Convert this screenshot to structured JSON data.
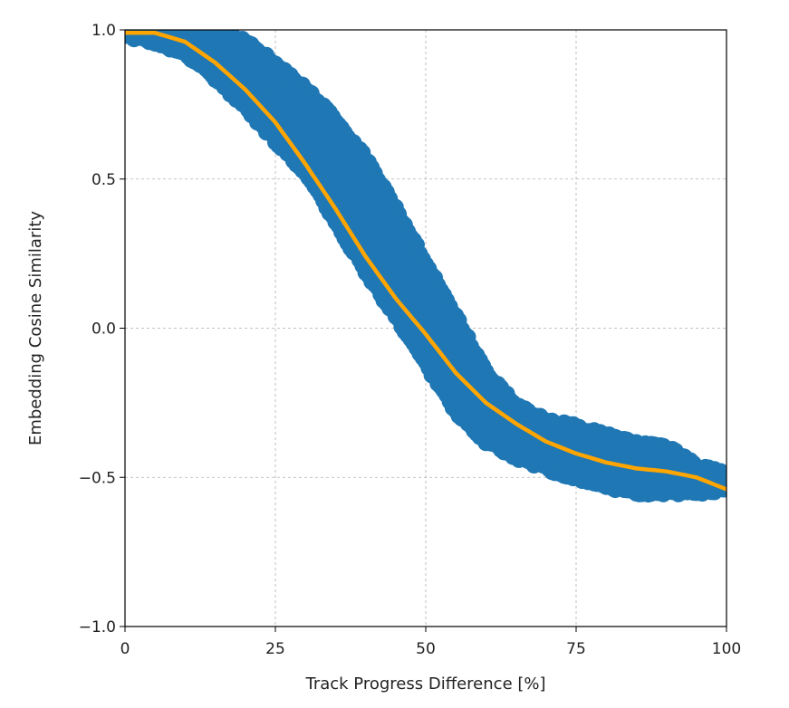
{
  "chart_data": {
    "type": "scatter",
    "title": "",
    "xlabel": "Track Progress Difference [%]",
    "ylabel": "Embedding Cosine Similarity",
    "xlim": [
      0,
      100
    ],
    "ylim": [
      -1.0,
      1.0
    ],
    "x_ticks": [
      0,
      25,
      50,
      75,
      100
    ],
    "x_tick_labels": [
      "0",
      "25",
      "50",
      "75",
      "100"
    ],
    "y_ticks": [
      -1.0,
      -0.5,
      0.0,
      0.5,
      1.0
    ],
    "y_tick_labels": [
      "−1.0",
      "−0.5",
      "0.0",
      "0.5",
      "1.0"
    ],
    "grid": true,
    "legend": "none",
    "series": [
      {
        "kind": "scatter-band",
        "color": "#1f77b4",
        "x": [
          0,
          5,
          10,
          15,
          20,
          25,
          30,
          35,
          40,
          45,
          50,
          55,
          60,
          65,
          70,
          75,
          80,
          85,
          90,
          95,
          100
        ],
        "upper": [
          1.0,
          1.0,
          1.0,
          0.99,
          0.96,
          0.89,
          0.8,
          0.7,
          0.57,
          0.4,
          0.22,
          0.04,
          -0.15,
          -0.26,
          -0.31,
          -0.33,
          -0.36,
          -0.39,
          -0.4,
          -0.46,
          -0.49
        ],
        "lower": [
          0.98,
          0.96,
          0.92,
          0.84,
          0.74,
          0.63,
          0.52,
          0.36,
          0.19,
          0.04,
          -0.12,
          -0.28,
          -0.38,
          -0.43,
          -0.47,
          -0.5,
          -0.53,
          -0.55,
          -0.55,
          -0.55,
          -0.54
        ]
      },
      {
        "kind": "fit-line",
        "color": "#ffa500",
        "x": [
          0,
          5,
          10,
          15,
          20,
          25,
          30,
          35,
          40,
          45,
          50,
          55,
          60,
          65,
          70,
          75,
          80,
          85,
          90,
          95,
          100
        ],
        "y": [
          0.99,
          0.99,
          0.96,
          0.89,
          0.8,
          0.69,
          0.55,
          0.4,
          0.24,
          0.1,
          -0.02,
          -0.15,
          -0.25,
          -0.32,
          -0.38,
          -0.42,
          -0.45,
          -0.47,
          -0.48,
          -0.5,
          -0.54
        ]
      }
    ]
  }
}
